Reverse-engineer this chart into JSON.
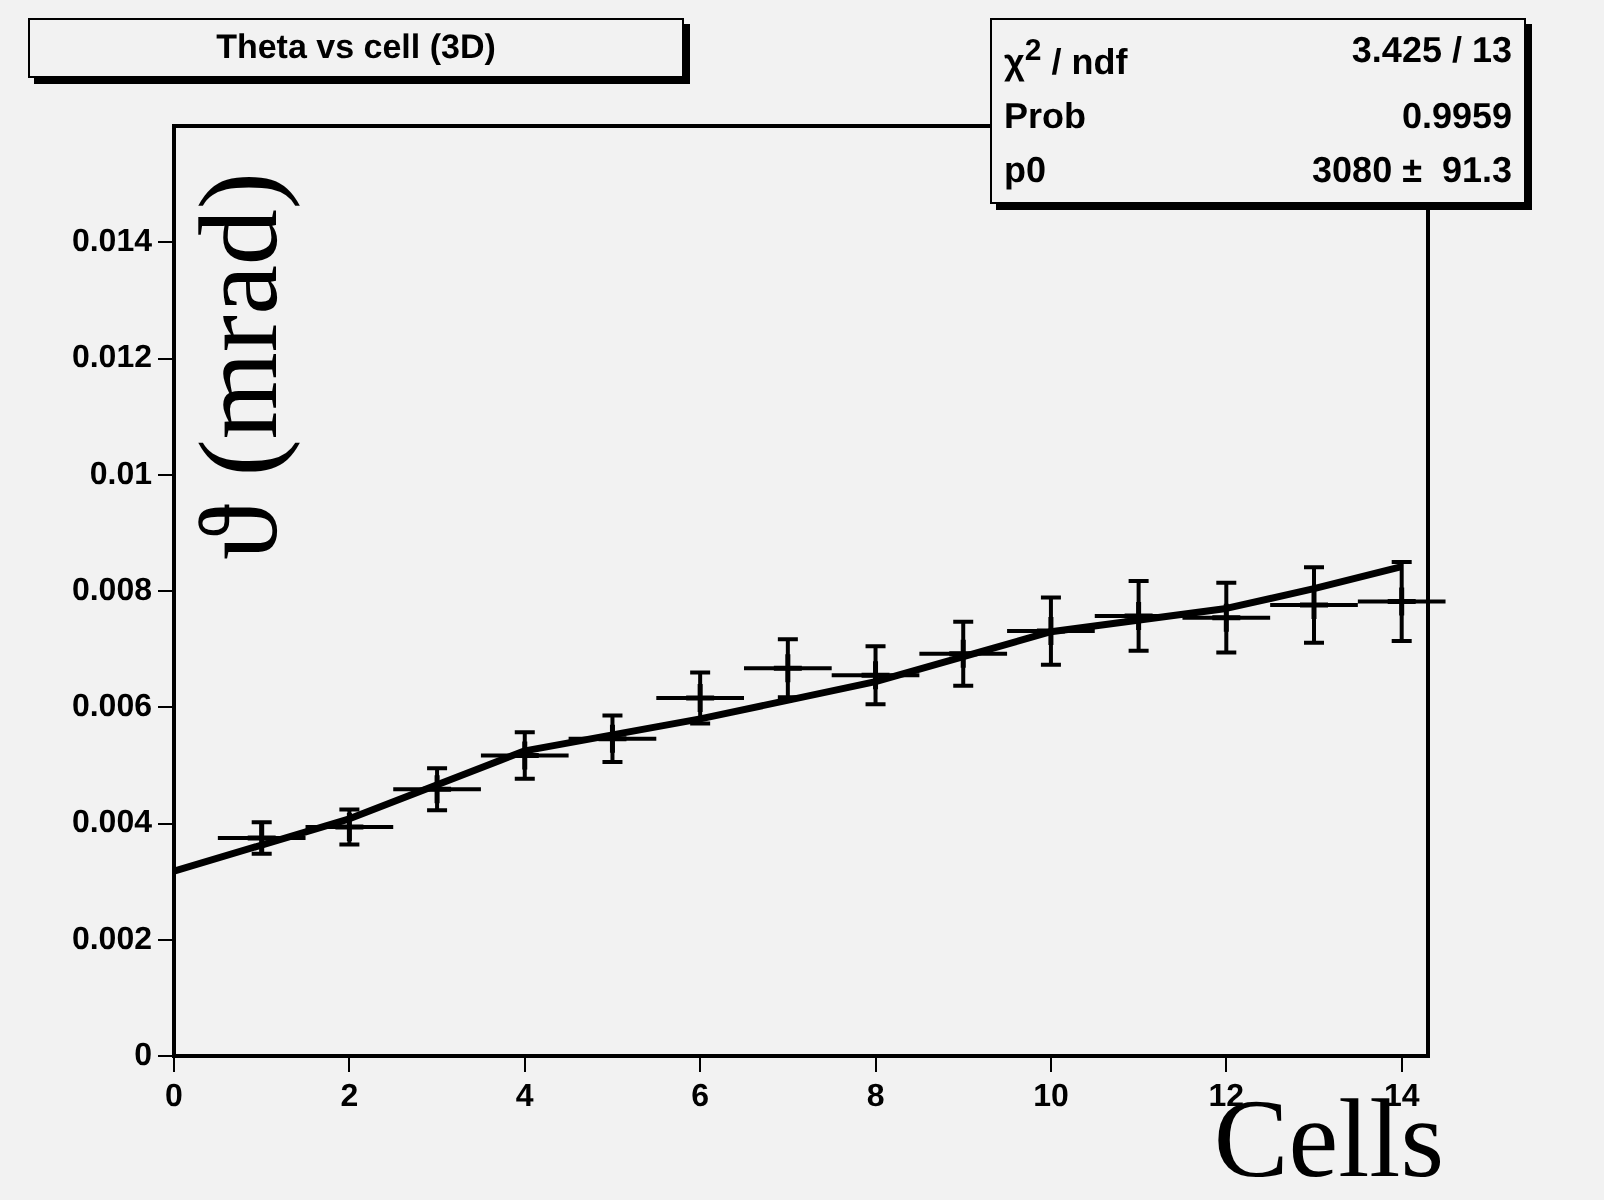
{
  "chart_data": {
    "type": "scatter",
    "title": "Theta vs cell (3D)",
    "xlabel": "Cells",
    "ylabel": "ϑ (mrad)",
    "annotations": [
      "χ$^{2}$ / ndf",
      "3.425 / 13",
      "Prob",
      "0.9959",
      "p0",
      "3080 ±  91.3"
    ],
    "xlim": [
      0,
      14.3
    ],
    "xticks": [
      0,
      2,
      4,
      6,
      8,
      10,
      12,
      14
    ],
    "ylim": [
      0,
      0.016
    ],
    "yticks": [
      0,
      0.002,
      0.004,
      0.006,
      0.008,
      0.01,
      0.012,
      0.014
    ],
    "legend": false,
    "series": [
      {
        "marker": "cross",
        "color": "#000000",
        "x": [
          1,
          2,
          3,
          4,
          5,
          6,
          7,
          8,
          9,
          10,
          11,
          12,
          13,
          14
        ],
        "values": [
          0.00375,
          0.00394,
          0.00459,
          0.00517,
          0.00546,
          0.00616,
          0.00667,
          0.00655,
          0.00692,
          0.00731,
          0.00757,
          0.00754,
          0.00776,
          0.00782
        ],
        "errors": [
          0.00027,
          0.0003,
          0.00036,
          0.0004,
          0.0004,
          0.00044,
          0.0005,
          0.0005,
          0.00055,
          0.00058,
          0.0006,
          0.0006,
          0.00065,
          0.00068
        ],
        "xerrors": [
          0.5,
          0.5,
          0.5,
          0.5,
          0.5,
          0.5,
          0.5,
          0.5,
          0.5,
          0.5,
          0.5,
          0.5,
          0.5,
          0.5
        ]
      },
      {
        "type": "line",
        "marker": "none",
        "color": "#000000",
        "x": [
          0,
          2,
          4,
          6,
          8,
          10,
          12,
          13,
          14
        ],
        "values": [
          0.00318,
          0.00408,
          0.00525,
          0.0058,
          0.00644,
          0.0073,
          0.0077,
          0.00804,
          0.00842
        ]
      }
    ]
  }
}
